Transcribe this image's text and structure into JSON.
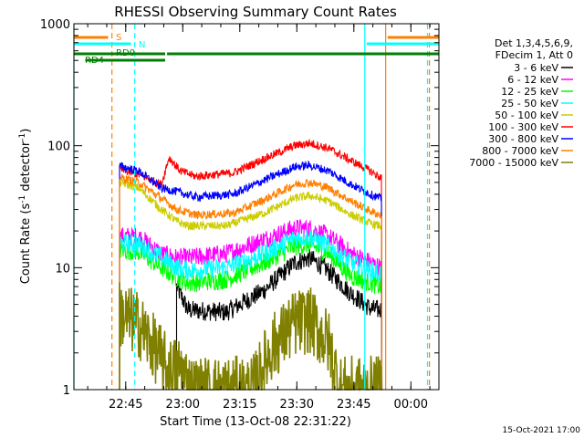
{
  "chart_data": {
    "type": "line",
    "title": "RHESSI Observing Summary Count Rates",
    "xlabel": "Start Time (13-Oct-08 22:31:22)",
    "ylabel": "Count Rate (s",
    "ylabel_sup": "-1",
    "ylabel_tail": " detector",
    "ylabel_sup2": "-1",
    "ylabel_close": ")",
    "yscale": "log",
    "ylim": [
      1,
      1000
    ],
    "xlim_minutes": [
      0,
      96
    ],
    "y_ticks": [
      {
        "value": 1,
        "label": "1"
      },
      {
        "value": 10,
        "label": "10"
      },
      {
        "value": 100,
        "label": "100"
      },
      {
        "value": 1000,
        "label": "1000"
      }
    ],
    "x_ticks": [
      {
        "minute": 13.63,
        "label": "22:45"
      },
      {
        "minute": 28.63,
        "label": "23:00"
      },
      {
        "minute": 43.63,
        "label": "23:15"
      },
      {
        "minute": 58.63,
        "label": "23:30"
      },
      {
        "minute": 73.63,
        "label": "23:45"
      },
      {
        "minute": 88.63,
        "label": "00:00"
      }
    ],
    "legend_header": [
      "Det 1,3,4,5,6,9,",
      "FDecim 1, Att 0"
    ],
    "series": [
      {
        "name": "3 - 6 keV",
        "color": "#000000",
        "start": 27,
        "end": 81,
        "profile": [
          [
            27,
            7
          ],
          [
            30,
            4.5
          ],
          [
            40,
            4.3
          ],
          [
            50,
            6.5
          ],
          [
            58,
            11
          ],
          [
            62,
            12
          ],
          [
            66,
            10
          ],
          [
            72,
            6.5
          ],
          [
            78,
            4.6
          ],
          [
            80.5,
            4.5
          ]
        ]
      },
      {
        "name": "6 - 12 keV",
        "color": "#ff00ff",
        "start": 12,
        "end": 81,
        "profile": [
          [
            12,
            18
          ],
          [
            17,
            18
          ],
          [
            23,
            13
          ],
          [
            27,
            12
          ],
          [
            30,
            12
          ],
          [
            40,
            13
          ],
          [
            50,
            17
          ],
          [
            58,
            21
          ],
          [
            62,
            21
          ],
          [
            67,
            18
          ],
          [
            73,
            13
          ],
          [
            78,
            11
          ],
          [
            80.5,
            10
          ]
        ]
      },
      {
        "name": "12 - 25 keV",
        "color": "#00ff00",
        "start": 12,
        "end": 81,
        "profile": [
          [
            12,
            14
          ],
          [
            17,
            13.5
          ],
          [
            23,
            10
          ],
          [
            27,
            8.3
          ],
          [
            30,
            7.5
          ],
          [
            40,
            8
          ],
          [
            50,
            11
          ],
          [
            58,
            15
          ],
          [
            62,
            15.5
          ],
          [
            67,
            13
          ],
          [
            73,
            8.5
          ],
          [
            78,
            7.5
          ],
          [
            80.5,
            7
          ]
        ]
      },
      {
        "name": "25 - 50 keV",
        "color": "#00ffff",
        "start": 12,
        "end": 81,
        "profile": [
          [
            12,
            16
          ],
          [
            17,
            15.5
          ],
          [
            23,
            12
          ],
          [
            27,
            10
          ],
          [
            30,
            9.5
          ],
          [
            40,
            10
          ],
          [
            50,
            13
          ],
          [
            58,
            17.5
          ],
          [
            62,
            18
          ],
          [
            67,
            15
          ],
          [
            73,
            11
          ],
          [
            78,
            9.5
          ],
          [
            80.5,
            9
          ]
        ]
      },
      {
        "name": "50 - 100 keV",
        "color": "#cccc00",
        "start": 12,
        "end": 81,
        "profile": [
          [
            12,
            50
          ],
          [
            17,
            45
          ],
          [
            23,
            30
          ],
          [
            27,
            24
          ],
          [
            30,
            22
          ],
          [
            40,
            22
          ],
          [
            50,
            28
          ],
          [
            58,
            37
          ],
          [
            62,
            39
          ],
          [
            67,
            35
          ],
          [
            73,
            27
          ],
          [
            78,
            23
          ],
          [
            80.5,
            22
          ]
        ]
      },
      {
        "name": "100 - 300 keV",
        "color": "#ff0000",
        "start": 12,
        "end": 81,
        "profile": [
          [
            12,
            64
          ],
          [
            17,
            58
          ],
          [
            23,
            48
          ],
          [
            25,
            80
          ],
          [
            28,
            62
          ],
          [
            32,
            56
          ],
          [
            42,
            60
          ],
          [
            50,
            78
          ],
          [
            58,
            100
          ],
          [
            62,
            105
          ],
          [
            67,
            95
          ],
          [
            73,
            75
          ],
          [
            78,
            62
          ],
          [
            80.5,
            55
          ]
        ]
      },
      {
        "name": "300 - 800 keV",
        "color": "#0000ff",
        "start": 12,
        "end": 81,
        "profile": [
          [
            12,
            68
          ],
          [
            17,
            62
          ],
          [
            23,
            45
          ],
          [
            27,
            42
          ],
          [
            32,
            38
          ],
          [
            42,
            40
          ],
          [
            50,
            52
          ],
          [
            58,
            67
          ],
          [
            62,
            69
          ],
          [
            67,
            62
          ],
          [
            73,
            48
          ],
          [
            78,
            40
          ],
          [
            80.5,
            37
          ]
        ]
      },
      {
        "name": "800 - 7000 keV",
        "color": "#ff8000",
        "start": 12,
        "end": 81,
        "profile": [
          [
            12,
            55
          ],
          [
            17,
            50
          ],
          [
            23,
            37
          ],
          [
            27,
            30
          ],
          [
            32,
            27
          ],
          [
            42,
            28
          ],
          [
            50,
            36
          ],
          [
            58,
            48
          ],
          [
            62,
            50
          ],
          [
            67,
            45
          ],
          [
            73,
            35
          ],
          [
            78,
            29
          ],
          [
            80.5,
            27
          ]
        ]
      },
      {
        "name": "7000 - 15000 keV",
        "color": "#808000",
        "start": 12,
        "end": 81,
        "profile": [
          [
            12,
            4.2
          ],
          [
            17,
            3.4
          ],
          [
            23,
            1.8
          ],
          [
            25,
            1.4
          ],
          [
            28,
            1.5
          ],
          [
            31,
            1.0
          ],
          [
            40,
            1.0
          ],
          [
            47,
            1.0
          ],
          [
            52,
            2.2
          ],
          [
            58,
            3.5
          ],
          [
            62,
            3.7
          ],
          [
            67,
            2.4
          ],
          [
            70,
            1.0
          ],
          [
            80,
            1.0
          ]
        ]
      }
    ],
    "flags": [
      {
        "name": "S",
        "color": "#ff8000",
        "label": "S"
      },
      {
        "name": "N",
        "color": "#00ffff",
        "label": "N"
      },
      {
        "name": "RD0",
        "color": "#008000",
        "label": "RD0"
      },
      {
        "name": "RD4",
        "color": "#008000",
        "label": "RD4"
      }
    ],
    "vertical_markers": [
      {
        "minute": 0,
        "color": "#00ffff",
        "dashed": false
      },
      {
        "minute": 10,
        "color": "#ff8000",
        "dashed": true
      },
      {
        "minute": 16,
        "color": "#00ffff",
        "dashed": true
      },
      {
        "minute": 76.5,
        "color": "#00ffff",
        "dashed": false
      },
      {
        "minute": 82,
        "color": "#ff8000",
        "dashed": false
      },
      {
        "minute": 93,
        "color": "#00ffff",
        "dashed": true
      },
      {
        "minute": 93.5,
        "color": "#ff8000",
        "dashed": true
      }
    ],
    "timestamp": "15-Oct-2021 17:00"
  }
}
